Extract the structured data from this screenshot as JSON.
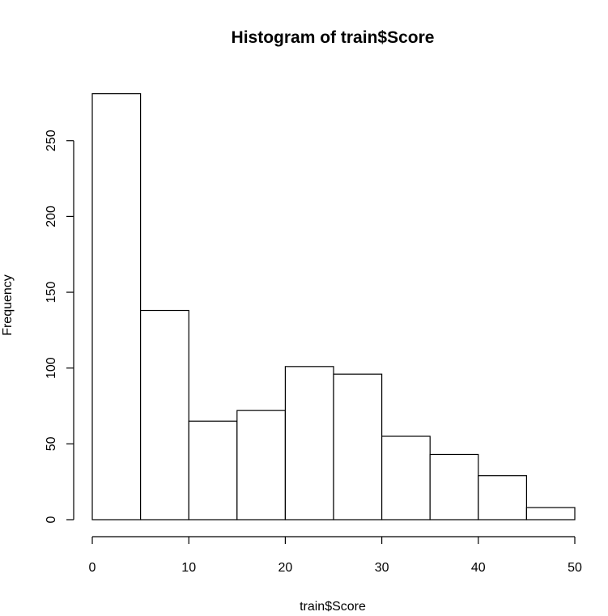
{
  "chart_data": {
    "type": "bar",
    "histogram": true,
    "title": "Histogram of train$Score",
    "xlabel": "train$Score",
    "ylabel": "Frequency",
    "bin_edges": [
      0,
      5,
      10,
      15,
      20,
      25,
      30,
      35,
      40,
      45,
      50
    ],
    "values": [
      281,
      138,
      65,
      72,
      101,
      96,
      55,
      43,
      29,
      8
    ],
    "xlim": [
      0,
      50
    ],
    "ylim": [
      0,
      281
    ],
    "x_ticks": [
      0,
      10,
      20,
      30,
      40,
      50
    ],
    "x_tick_labels": [
      "0",
      "10",
      "20",
      "30",
      "40",
      "50"
    ],
    "y_ticks": [
      0,
      50,
      100,
      150,
      200,
      250
    ],
    "y_tick_labels": [
      "0",
      "50",
      "100",
      "150",
      "200",
      "250"
    ],
    "grid": false,
    "legend": "none",
    "colors": {
      "bar_fill": "#ffffff",
      "bar_stroke": "#000000",
      "text": "#000000",
      "background": "#ffffff"
    }
  }
}
